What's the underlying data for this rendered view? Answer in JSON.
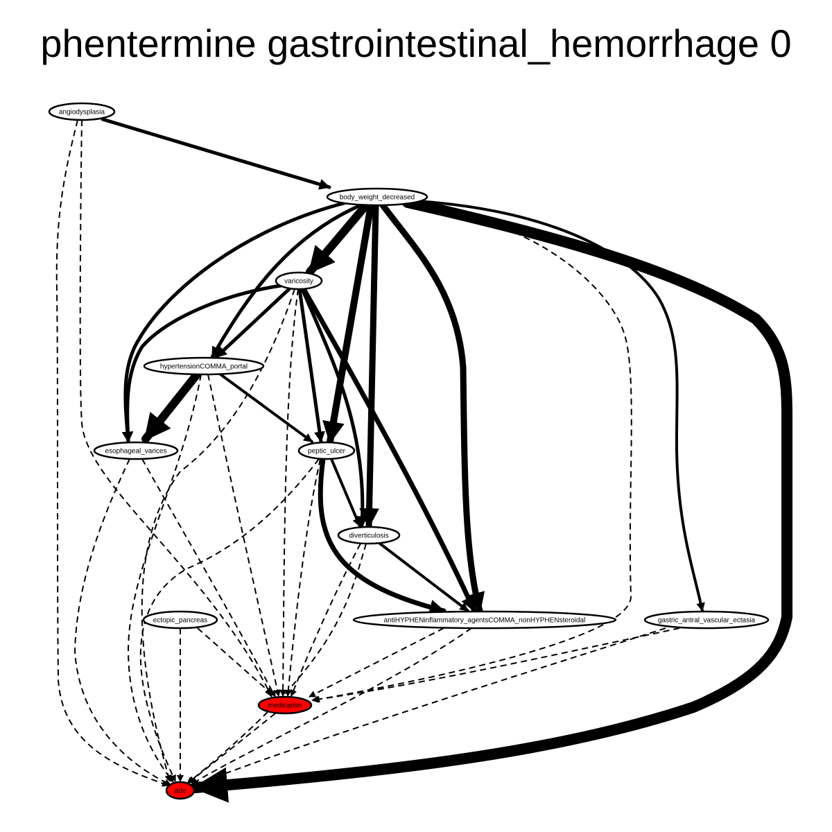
{
  "title": "phentermine gastrointestinal_hemorrhage 0",
  "colors": {
    "default_fill": "#ffffff",
    "highlight_fill": "#ff0000",
    "edge": "#000000"
  },
  "nodes": [
    {
      "id": "angiodysplasia",
      "label": "angiodysplasia",
      "fill": "#ffffff"
    },
    {
      "id": "body_weight_decreased",
      "label": "body_weight_decreased",
      "fill": "#ffffff"
    },
    {
      "id": "varicosity",
      "label": "varicosity",
      "fill": "#ffffff"
    },
    {
      "id": "hypertension_portal",
      "label": "hypertensionCOMMA_portal",
      "fill": "#ffffff"
    },
    {
      "id": "esophageal_varices",
      "label": "esophageal_varices",
      "fill": "#ffffff"
    },
    {
      "id": "peptic_ulcer",
      "label": "peptic_ulcer",
      "fill": "#ffffff"
    },
    {
      "id": "diverticulosis",
      "label": "diverticulosis",
      "fill": "#ffffff"
    },
    {
      "id": "ectopic_pancreas",
      "label": "ectopic_pancreas",
      "fill": "#ffffff"
    },
    {
      "id": "nsaid",
      "label": "antiHYPHENinflammatory_agentsCOMMA_nonHYPHENsteroidal",
      "fill": "#ffffff"
    },
    {
      "id": "gave",
      "label": "gastric_antral_vascular_ectasia",
      "fill": "#ffffff"
    },
    {
      "id": "medication",
      "label": "medication",
      "fill": "#ff0000"
    },
    {
      "id": "ade",
      "label": "ade",
      "fill": "#ff0000"
    }
  ],
  "edges": [
    {
      "from": "angiodysplasia",
      "to": "body_weight_decreased",
      "style": "solid",
      "weight": 5
    },
    {
      "from": "angiodysplasia",
      "to": "medication",
      "style": "dashed",
      "weight": 2
    },
    {
      "from": "angiodysplasia",
      "to": "ade",
      "style": "dashed",
      "weight": 2
    },
    {
      "from": "body_weight_decreased",
      "to": "varicosity",
      "style": "solid",
      "weight": 12
    },
    {
      "from": "body_weight_decreased",
      "to": "hypertension_portal",
      "style": "solid",
      "weight": 5
    },
    {
      "from": "body_weight_decreased",
      "to": "esophageal_varices",
      "style": "solid",
      "weight": 5
    },
    {
      "from": "body_weight_decreased",
      "to": "peptic_ulcer",
      "style": "solid",
      "weight": 10
    },
    {
      "from": "body_weight_decreased",
      "to": "diverticulosis",
      "style": "solid",
      "weight": 9
    },
    {
      "from": "body_weight_decreased",
      "to": "nsaid",
      "style": "solid",
      "weight": 9
    },
    {
      "from": "body_weight_decreased",
      "to": "gave",
      "style": "solid",
      "weight": 4
    },
    {
      "from": "body_weight_decreased",
      "to": "medication",
      "style": "dashed",
      "weight": 2
    },
    {
      "from": "body_weight_decreased",
      "to": "ade",
      "style": "solid",
      "weight": 16
    },
    {
      "from": "varicosity",
      "to": "hypertension_portal",
      "style": "solid",
      "weight": 5
    },
    {
      "from": "varicosity",
      "to": "esophageal_varices",
      "style": "solid",
      "weight": 5
    },
    {
      "from": "varicosity",
      "to": "peptic_ulcer",
      "style": "solid",
      "weight": 5
    },
    {
      "from": "varicosity",
      "to": "diverticulosis",
      "style": "solid",
      "weight": 5
    },
    {
      "from": "varicosity",
      "to": "nsaid",
      "style": "solid",
      "weight": 7
    },
    {
      "from": "varicosity",
      "to": "medication",
      "style": "dashed",
      "weight": 2
    },
    {
      "from": "varicosity",
      "to": "ade",
      "style": "dashed",
      "weight": 2
    },
    {
      "from": "hypertension_portal",
      "to": "esophageal_varices",
      "style": "solid",
      "weight": 12
    },
    {
      "from": "hypertension_portal",
      "to": "peptic_ulcer",
      "style": "solid",
      "weight": 4
    },
    {
      "from": "hypertension_portal",
      "to": "medication",
      "style": "dashed",
      "weight": 2
    },
    {
      "from": "hypertension_portal",
      "to": "ade",
      "style": "dashed",
      "weight": 2
    },
    {
      "from": "esophageal_varices",
      "to": "medication",
      "style": "dashed",
      "weight": 2
    },
    {
      "from": "esophageal_varices",
      "to": "ade",
      "style": "dashed",
      "weight": 2
    },
    {
      "from": "peptic_ulcer",
      "to": "diverticulosis",
      "style": "solid",
      "weight": 4
    },
    {
      "from": "peptic_ulcer",
      "to": "nsaid",
      "style": "solid",
      "weight": 7
    },
    {
      "from": "peptic_ulcer",
      "to": "medication",
      "style": "dashed",
      "weight": 2
    },
    {
      "from": "peptic_ulcer",
      "to": "ade",
      "style": "dashed",
      "weight": 2
    },
    {
      "from": "diverticulosis",
      "to": "nsaid",
      "style": "solid",
      "weight": 4
    },
    {
      "from": "diverticulosis",
      "to": "medication",
      "style": "dashed",
      "weight": 2
    },
    {
      "from": "diverticulosis",
      "to": "ade",
      "style": "dashed",
      "weight": 2
    },
    {
      "from": "ectopic_pancreas",
      "to": "medication",
      "style": "dashed",
      "weight": 2
    },
    {
      "from": "ectopic_pancreas",
      "to": "ade",
      "style": "dashed",
      "weight": 2
    },
    {
      "from": "nsaid",
      "to": "medication",
      "style": "dashed",
      "weight": 2
    },
    {
      "from": "nsaid",
      "to": "ade",
      "style": "dashed",
      "weight": 2
    },
    {
      "from": "gave",
      "to": "medication",
      "style": "dashed",
      "weight": 2
    },
    {
      "from": "gave",
      "to": "ade",
      "style": "dashed",
      "weight": 2
    },
    {
      "from": "medication",
      "to": "ade",
      "style": "dashed",
      "weight": 2
    }
  ]
}
